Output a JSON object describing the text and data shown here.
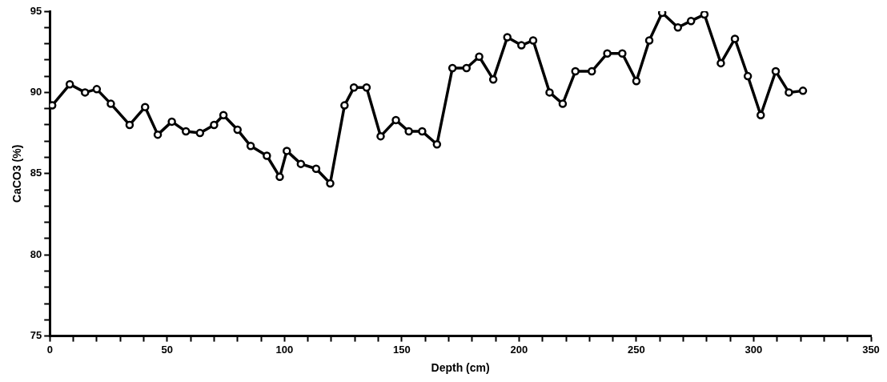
{
  "chart_data": {
    "type": "line",
    "xlabel": "Depth (cm)",
    "ylabel": "CaCO3 (%)",
    "x": [
      1,
      8.5,
      15,
      20,
      26,
      34,
      40.6,
      46,
      52,
      58,
      64,
      70,
      74,
      80,
      85.6,
      92.5,
      98,
      101,
      107,
      113.5,
      119.5,
      125.6,
      129.6,
      135,
      141,
      147.5,
      153,
      158.7,
      165,
      171.6,
      177.6,
      183,
      189,
      195,
      201,
      206,
      213,
      218.6,
      224,
      231,
      237.6,
      244,
      250,
      255.5,
      261,
      267.7,
      273.3,
      279,
      286,
      292,
      297.5,
      303,
      309.4,
      315,
      321
    ],
    "series": [
      {
        "color": "#000000",
        "values": [
          89.2,
          90.5,
          90.0,
          90.2,
          89.3,
          88.0,
          89.1,
          87.4,
          88.2,
          87.6,
          87.5,
          88.0,
          88.6,
          87.7,
          86.7,
          86.1,
          84.8,
          86.4,
          85.6,
          85.3,
          84.4,
          89.2,
          90.3,
          90.3,
          87.3,
          88.3,
          87.6,
          87.6,
          86.8,
          91.5,
          91.5,
          92.2,
          90.8,
          93.4,
          92.9,
          93.2,
          90.0,
          89.3,
          91.3,
          91.3,
          92.4,
          92.4,
          90.7,
          93.2,
          94.9,
          94.0,
          94.4,
          94.8,
          91.8,
          93.3,
          91.0,
          88.6,
          91.3,
          90.0,
          90.1
        ]
      }
    ],
    "xlim": [
      0,
      350
    ],
    "xticks": [
      0,
      {
        "value": 10,
        "label": null
      },
      {
        "value": 20,
        "label": null
      },
      {
        "value": 30,
        "label": null
      },
      {
        "value": 40,
        "label": null
      },
      50,
      {
        "value": 60,
        "label": null
      },
      {
        "value": 70,
        "label": null
      },
      {
        "value": 80,
        "label": null
      },
      {
        "value": 90,
        "label": null
      },
      100,
      {
        "value": 110,
        "label": null
      },
      {
        "value": 120,
        "label": null
      },
      {
        "value": 130,
        "label": null
      },
      {
        "value": 140,
        "label": null
      },
      150,
      {
        "value": 160,
        "label": null
      },
      {
        "value": 170,
        "label": null
      },
      {
        "value": 180,
        "label": null
      },
      {
        "value": 190,
        "label": null
      },
      200,
      {
        "value": 210,
        "label": null
      },
      {
        "value": 220,
        "label": null
      },
      {
        "value": 230,
        "label": null
      },
      {
        "value": 240,
        "label": null
      },
      250,
      {
        "value": 260,
        "label": null
      },
      {
        "value": 270,
        "label": null
      },
      {
        "value": 280,
        "label": null
      },
      {
        "value": 290,
        "label": null
      },
      300,
      {
        "value": 310,
        "label": null
      },
      {
        "value": 320,
        "label": null
      },
      {
        "value": 330,
        "label": null
      },
      {
        "value": 340,
        "label": null
      },
      350
    ],
    "ylim": [
      75,
      95
    ],
    "yticks": [
      75,
      {
        "value": 76,
        "label": null
      },
      {
        "value": 77,
        "label": null
      },
      {
        "value": 78,
        "label": null
      },
      {
        "value": 79,
        "label": null
      },
      80,
      {
        "value": 81,
        "label": null
      },
      {
        "value": 82,
        "label": null
      },
      {
        "value": 83,
        "label": null
      },
      {
        "value": 84,
        "label": null
      },
      85,
      {
        "value": 86,
        "label": null
      },
      {
        "value": 87,
        "label": null
      },
      {
        "value": 88,
        "label": null
      },
      {
        "value": 89,
        "label": null
      },
      90,
      {
        "value": 91,
        "label": null
      },
      {
        "value": 92,
        "label": null
      },
      {
        "value": 93,
        "label": null
      },
      {
        "value": 94,
        "label": null
      },
      95
    ],
    "grid": false,
    "legend": false,
    "marker": "circle",
    "line_style": "solid"
  }
}
